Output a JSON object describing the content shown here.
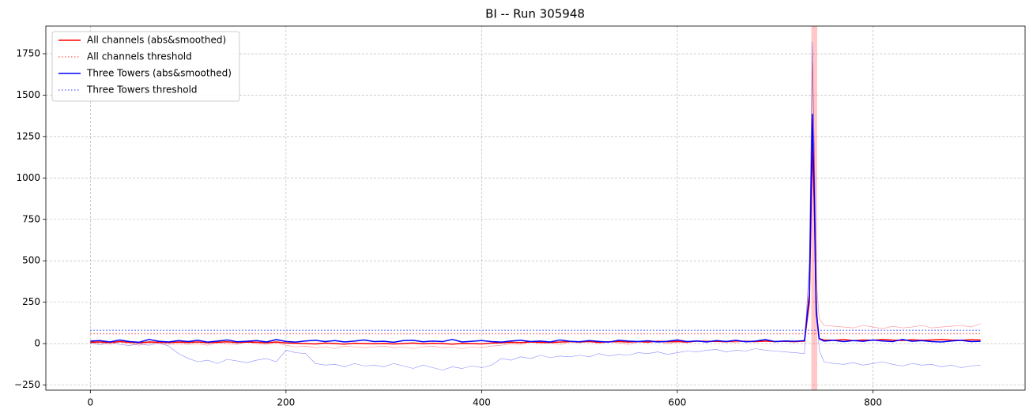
{
  "chart_data": {
    "type": "line",
    "title": "BI -- Run 305948",
    "x": [
      0,
      10,
      20,
      30,
      40,
      50,
      60,
      70,
      80,
      90,
      100,
      110,
      120,
      130,
      140,
      150,
      160,
      170,
      180,
      190,
      200,
      210,
      220,
      230,
      240,
      250,
      260,
      270,
      280,
      290,
      300,
      310,
      320,
      330,
      340,
      350,
      360,
      370,
      380,
      390,
      400,
      410,
      420,
      430,
      440,
      450,
      460,
      470,
      480,
      490,
      500,
      510,
      520,
      530,
      540,
      550,
      560,
      570,
      580,
      590,
      600,
      610,
      620,
      630,
      640,
      650,
      660,
      670,
      680,
      690,
      700,
      710,
      720,
      730,
      735,
      738,
      740,
      742,
      745,
      750,
      760,
      770,
      780,
      790,
      800,
      810,
      820,
      830,
      840,
      850,
      860,
      870,
      880,
      890,
      900,
      910
    ],
    "series": [
      {
        "color": "#ff0000",
        "alpha": 0.45,
        "linewidth": 0.6,
        "linestyle": "solid",
        "values": [
          0,
          5,
          -5,
          10,
          0,
          -10,
          5,
          0,
          -5,
          0,
          -5,
          0,
          -10,
          5,
          0,
          -5,
          10,
          0,
          -5,
          5,
          -10,
          -20,
          -15,
          -25,
          -20,
          -30,
          -15,
          -20,
          -25,
          -20,
          -15,
          -25,
          -20,
          -30,
          -20,
          -15,
          -25,
          -20,
          -30,
          -20,
          -25,
          -15,
          -10,
          0,
          -5,
          10,
          0,
          5,
          -5,
          10,
          5,
          15,
          0,
          10,
          5,
          -5,
          10,
          5,
          15,
          0,
          10,
          5,
          15,
          20,
          10,
          15,
          5,
          20,
          10,
          15,
          10,
          15,
          5,
          20,
          450,
          1700,
          1200,
          400,
          150,
          110,
          105,
          100,
          95,
          110,
          100,
          90,
          105,
          95,
          100,
          110,
          95,
          100,
          105,
          110,
          100,
          120
        ]
      },
      {
        "color": "#0000ff",
        "alpha": 0.45,
        "linewidth": 0.6,
        "linestyle": "solid",
        "values": [
          5,
          -8,
          10,
          -5,
          -12,
          0,
          -10,
          5,
          -15,
          -60,
          -90,
          -110,
          -100,
          -120,
          -95,
          -105,
          -115,
          -100,
          -90,
          -110,
          -40,
          -55,
          -60,
          -120,
          -130,
          -125,
          -140,
          -120,
          -135,
          -130,
          -140,
          -120,
          -135,
          -150,
          -130,
          -145,
          -160,
          -140,
          -150,
          -135,
          -145,
          -130,
          -90,
          -100,
          -80,
          -90,
          -70,
          -85,
          -75,
          -80,
          -70,
          -80,
          -60,
          -75,
          -65,
          -70,
          -55,
          -60,
          -50,
          -65,
          -55,
          -45,
          -50,
          -40,
          -35,
          -50,
          -40,
          -45,
          -30,
          -40,
          -45,
          -50,
          -55,
          -60,
          500,
          1820,
          1100,
          300,
          -40,
          -110,
          -120,
          -125,
          -115,
          -130,
          -120,
          -110,
          -125,
          -135,
          -120,
          -130,
          -125,
          -140,
          -130,
          -145,
          -135,
          -130
        ]
      },
      {
        "name": "All channels (abs&smoothed)",
        "color": "#ff0000",
        "alpha": 1,
        "linewidth": 1.5,
        "linestyle": "solid",
        "values": [
          8,
          10,
          6,
          12,
          8,
          5,
          10,
          8,
          6,
          9,
          7,
          10,
          5,
          8,
          11,
          6,
          9,
          8,
          5,
          10,
          4,
          2,
          0,
          -2,
          3,
          0,
          -3,
          2,
          0,
          -1,
          1,
          -2,
          0,
          3,
          -1,
          2,
          0,
          -3,
          1,
          0,
          -2,
          3,
          5,
          8,
          6,
          10,
          8,
          7,
          9,
          12,
          10,
          12,
          8,
          11,
          13,
          9,
          12,
          10,
          14,
          11,
          13,
          10,
          15,
          12,
          14,
          11,
          16,
          13,
          12,
          15,
          12,
          14,
          13,
          15,
          250,
          1200,
          850,
          180,
          30,
          22,
          20,
          24,
          18,
          22,
          20,
          25,
          21,
          19,
          23,
          20,
          22,
          24,
          21,
          20,
          23,
          22
        ]
      },
      {
        "name": "All channels threshold",
        "color": "#ff0000",
        "alpha": 0.55,
        "linewidth": 1.5,
        "linestyle": "dotted",
        "x": [
          0,
          910
        ],
        "values": [
          60,
          60
        ]
      },
      {
        "name": "Three Towers (abs&smoothed)",
        "color": "#0000ff",
        "alpha": 1,
        "linewidth": 1.5,
        "linestyle": "solid",
        "values": [
          15,
          18,
          10,
          22,
          12,
          8,
          25,
          14,
          10,
          18,
          12,
          20,
          9,
          15,
          22,
          11,
          14,
          18,
          10,
          24,
          13,
          9,
          16,
          20,
          12,
          18,
          10,
          15,
          22,
          12,
          14,
          8,
          18,
          20,
          11,
          15,
          12,
          25,
          10,
          14,
          18,
          12,
          9,
          16,
          20,
          12,
          15,
          10,
          22,
          14,
          11,
          18,
          13,
          9,
          20,
          15,
          12,
          17,
          10,
          14,
          22,
          12,
          16,
          10,
          18,
          13,
          20,
          11,
          15,
          24,
          12,
          16,
          14,
          18,
          300,
          1385,
          900,
          200,
          30,
          15,
          20,
          12,
          18,
          14,
          22,
          16,
          12,
          25,
          14,
          18,
          12,
          10,
          16,
          20,
          12,
          14
        ]
      },
      {
        "name": "Three Towers threshold",
        "color": "#0000ff",
        "alpha": 0.55,
        "linewidth": 1.5,
        "linestyle": "dotted",
        "x": [
          0,
          910
        ],
        "values": [
          80,
          80
        ]
      }
    ],
    "highlight": {
      "xmin": 737,
      "xmax": 743,
      "color": "#ff0000",
      "alpha": 0.22
    },
    "xlim": [
      -45.5,
      955.5
    ],
    "ylim": [
      -281,
      1917
    ],
    "xticks": [
      0,
      200,
      400,
      600,
      800
    ],
    "yticks": [
      {
        "value": -250,
        "label": "−250"
      },
      0,
      250,
      500,
      750,
      1000,
      1250,
      1500,
      1750
    ],
    "grid": true,
    "legend": "upper left"
  }
}
